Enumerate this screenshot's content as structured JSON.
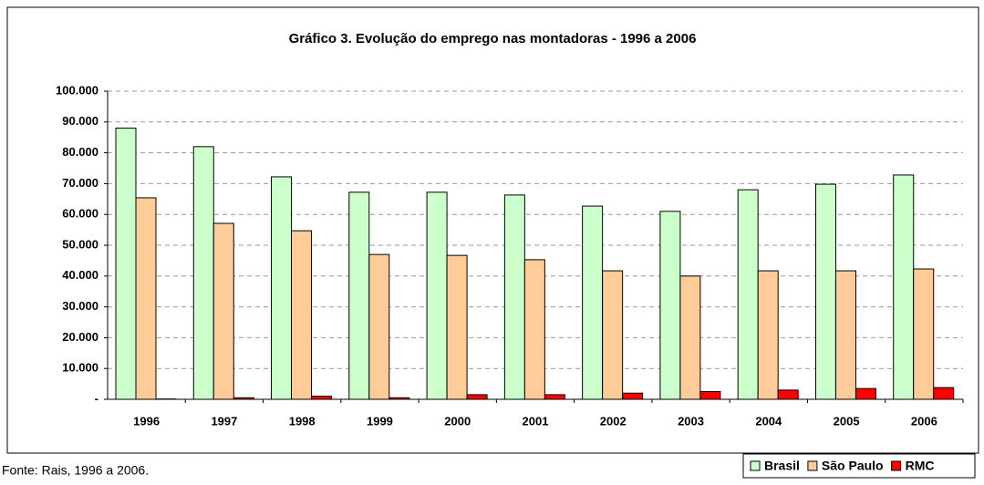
{
  "chart_data": {
    "type": "bar",
    "title": "Gráfico 3. Evolução do emprego nas montadoras - 1996 a 2006",
    "categories": [
      "1996",
      "1997",
      "1998",
      "1999",
      "2000",
      "2001",
      "2002",
      "2003",
      "2004",
      "2005",
      "2006"
    ],
    "series": [
      {
        "name": "Brasil",
        "color": "#ccffcc",
        "values": [
          88000,
          82000,
          72200,
          67200,
          67200,
          66300,
          62700,
          61000,
          68000,
          69800,
          72800
        ]
      },
      {
        "name": "São Paulo",
        "color": "#ffcc99",
        "values": [
          65400,
          57100,
          54700,
          47000,
          46700,
          45300,
          41700,
          40000,
          41700,
          41700,
          42300
        ]
      },
      {
        "name": "RMC",
        "color": "#ff0000",
        "values": [
          100,
          500,
          1000,
          500,
          1500,
          1500,
          2000,
          2500,
          3000,
          3500,
          3800
        ]
      }
    ],
    "ylim": [
      0,
      100000
    ],
    "yticks": [
      {
        "value": 0,
        "label": "-"
      },
      {
        "value": 10000,
        "label": "10.000"
      },
      {
        "value": 20000,
        "label": "20.000"
      },
      {
        "value": 30000,
        "label": "30.000"
      },
      {
        "value": 40000,
        "label": "40.000"
      },
      {
        "value": 50000,
        "label": "50.000"
      },
      {
        "value": 60000,
        "label": "60.000"
      },
      {
        "value": 70000,
        "label": "70.000"
      },
      {
        "value": 80000,
        "label": "80.000"
      },
      {
        "value": 90000,
        "label": "90.000"
      },
      {
        "value": 100000,
        "label": "100.000"
      }
    ],
    "grid": true,
    "legend": "bottom-right",
    "source": "Fonte: Rais, 1996 a 2006."
  }
}
